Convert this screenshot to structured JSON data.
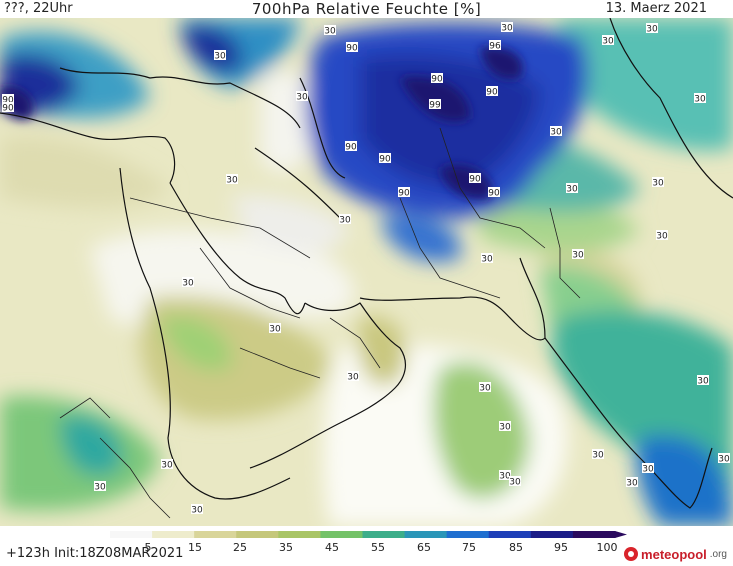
{
  "header": {
    "left": "???, 22Uhr",
    "title": "700hPa Relative Feuchte [%]",
    "right": "13. Maerz 2021"
  },
  "footer": {
    "run_info": "+123h  Init:18Z08MAR2021",
    "logo_main": "meteopool",
    "logo_suffix": ".org"
  },
  "colorbar": {
    "tick_labels": [
      "5",
      "15",
      "25",
      "35",
      "45",
      "55",
      "65",
      "75",
      "85",
      "95",
      "100"
    ],
    "colors": [
      "#f7f7f7",
      "#eeeccc",
      "#d9d59a",
      "#c5c77b",
      "#a9c566",
      "#74c268",
      "#3dae8a",
      "#2b96b8",
      "#1f6fd0",
      "#1e3fb8",
      "#1b1d88",
      "#2a0a5e"
    ]
  },
  "contour_labels": [
    "30",
    "90",
    "30",
    "90",
    "90",
    "90",
    "99",
    "90",
    "90",
    "90",
    "90",
    "90",
    "90",
    "96",
    "30",
    "30",
    "30",
    "30",
    "30",
    "30",
    "30",
    "30",
    "30",
    "30",
    "30",
    "30",
    "30",
    "30",
    "30",
    "30",
    "30",
    "30",
    "30",
    "30",
    "30",
    "30",
    "30",
    "30",
    "30",
    "30",
    "30",
    "30"
  ]
}
